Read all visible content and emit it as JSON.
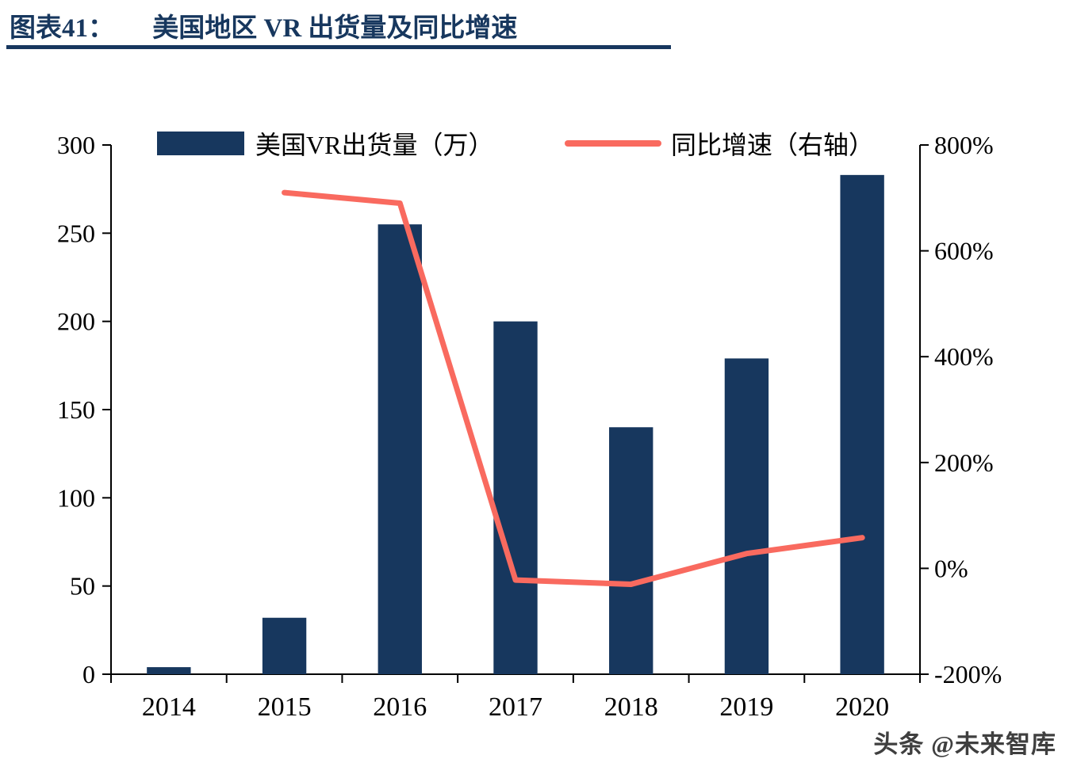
{
  "header": {
    "label": "图表41：",
    "title": "美国地区 VR 出货量及同比增速"
  },
  "watermark": "头条 @未来智库",
  "colors": {
    "bar": "#17375E",
    "line": "#F96A5F",
    "title": "#17375E",
    "rule": "#17375E",
    "axis": "#000000"
  },
  "chart_data": {
    "type": "bar+line",
    "title": "美国地区 VR 出货量及同比增速",
    "categories": [
      "2014",
      "2015",
      "2016",
      "2017",
      "2018",
      "2019",
      "2020"
    ],
    "series": [
      {
        "name": "美国VR出货量（万）",
        "type": "bar",
        "axis": "left",
        "values": [
          4,
          32,
          255,
          200,
          140,
          179,
          283
        ]
      },
      {
        "name": "同比增速（右轴）",
        "type": "line",
        "axis": "right",
        "values": [
          null,
          710,
          690,
          -22,
          -30,
          28,
          58
        ]
      }
    ],
    "left_axis": {
      "min": 0,
      "max": 300,
      "ticks": [
        "300",
        "250",
        "200",
        "150",
        "100",
        "50",
        "0"
      ]
    },
    "right_axis": {
      "min": -200,
      "max": 800,
      "ticks": [
        "800%",
        "600%",
        "400%",
        "200%",
        "0%",
        "-200%"
      ]
    },
    "legend_position": "top",
    "grid": false
  }
}
